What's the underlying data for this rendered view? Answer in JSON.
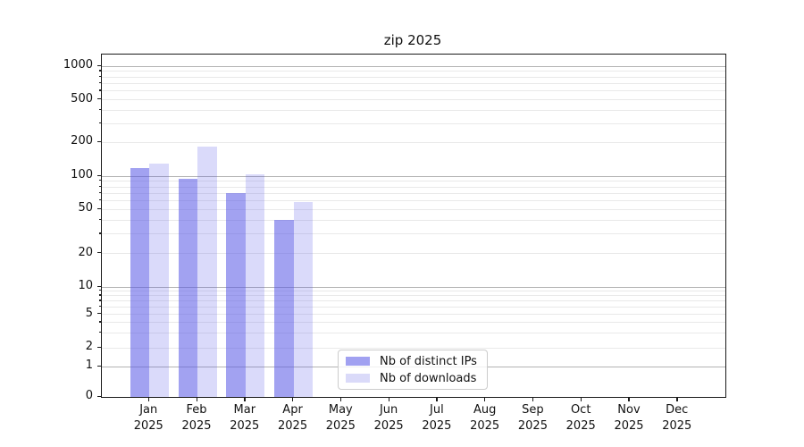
{
  "title": "zip 2025",
  "colors": {
    "bar_distinct_ips": "rgba(85,85,230,0.55)",
    "bar_downloads": "rgba(85,85,230,0.22)",
    "legend_swatch_distinct_ips": "#a1a1f1",
    "legend_swatch_downloads": "#dadaf9",
    "grid_major": "#b3b3b3",
    "grid_minor": "#e9e9e9",
    "spine": "#1a1a1a"
  },
  "y_axis": {
    "tick_labels": [
      "0",
      "1",
      "2",
      "5",
      "10",
      "20",
      "50",
      "100",
      "200",
      "500",
      "1000"
    ],
    "tick_values": [
      0,
      1,
      2,
      5,
      10,
      20,
      50,
      100,
      200,
      500,
      1000
    ],
    "scale": "symlog"
  },
  "x_axis": {
    "months": [
      "Jan",
      "Feb",
      "Mar",
      "Apr",
      "May",
      "Jun",
      "Jul",
      "Aug",
      "Sep",
      "Oct",
      "Nov",
      "Dec"
    ],
    "year": "2025"
  },
  "legend": {
    "items": [
      {
        "label": "Nb of distinct IPs",
        "swatch": "#a1a1f1"
      },
      {
        "label": "Nb of downloads",
        "swatch": "#dadaf9"
      }
    ]
  },
  "chart_data": {
    "type": "bar",
    "title": "zip 2025",
    "categories": [
      "Jan 2025",
      "Feb 2025",
      "Mar 2025",
      "Apr 2025",
      "May 2025",
      "Jun 2025",
      "Jul 2025",
      "Aug 2025",
      "Sep 2025",
      "Oct 2025",
      "Nov 2025",
      "Dec 2025"
    ],
    "series": [
      {
        "name": "Nb of distinct IPs",
        "values": [
          117,
          94,
          70,
          40,
          0,
          0,
          0,
          0,
          0,
          0,
          0,
          0
        ]
      },
      {
        "name": "Nb of downloads",
        "values": [
          130,
          185,
          103,
          58,
          0,
          0,
          0,
          0,
          0,
          0,
          0,
          0
        ]
      }
    ],
    "xlabel": "",
    "ylabel": "",
    "yscale": "symlog",
    "y_ticks": [
      0,
      1,
      2,
      5,
      10,
      20,
      50,
      100,
      200,
      500,
      1000
    ],
    "ylim": [
      0,
      1280
    ],
    "grid": true,
    "legend_position": "inside-bottom-center"
  }
}
